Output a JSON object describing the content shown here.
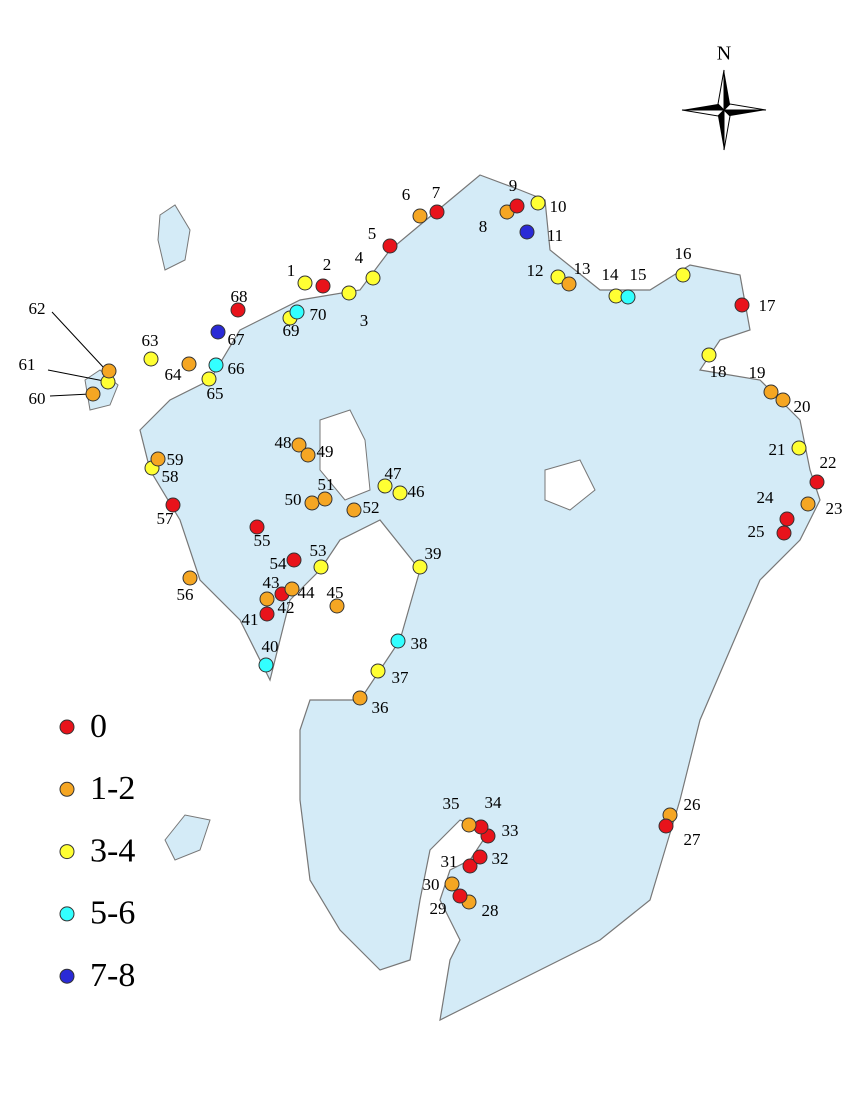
{
  "map": {
    "north_label": "N",
    "legend": [
      {
        "label": "0",
        "color": "#e8131b"
      },
      {
        "label": "1-2",
        "color": "#f5a623"
      },
      {
        "label": "3-4",
        "color": "#ffff33"
      },
      {
        "label": "5-6",
        "color": "#33ffff"
      },
      {
        "label": "7-8",
        "color": "#2a2ad6"
      }
    ],
    "sites": [
      {
        "label": "1",
        "category": "3-4"
      },
      {
        "label": "2",
        "category": "0"
      },
      {
        "label": "3",
        "category": "3-4"
      },
      {
        "label": "4",
        "category": "3-4"
      },
      {
        "label": "5",
        "category": "0"
      },
      {
        "label": "6",
        "category": "1-2"
      },
      {
        "label": "7",
        "category": "0"
      },
      {
        "label": "8",
        "category": "1-2"
      },
      {
        "label": "9",
        "category": "0"
      },
      {
        "label": "10",
        "category": "3-4"
      },
      {
        "label": "11",
        "category": "7-8"
      },
      {
        "label": "12",
        "category": "3-4"
      },
      {
        "label": "13",
        "category": "1-2"
      },
      {
        "label": "14",
        "category": "3-4"
      },
      {
        "label": "15",
        "category": "5-6"
      },
      {
        "label": "16",
        "category": "3-4"
      },
      {
        "label": "17",
        "category": "0"
      },
      {
        "label": "18",
        "category": "3-4"
      },
      {
        "label": "19",
        "category": "1-2"
      },
      {
        "label": "20",
        "category": "1-2"
      },
      {
        "label": "21",
        "category": "3-4"
      },
      {
        "label": "22",
        "category": "0"
      },
      {
        "label": "23",
        "category": "1-2"
      },
      {
        "label": "24",
        "category": "0"
      },
      {
        "label": "25",
        "category": "0"
      },
      {
        "label": "26",
        "category": "1-2"
      },
      {
        "label": "27",
        "category": "0"
      },
      {
        "label": "28",
        "category": "1-2"
      },
      {
        "label": "29",
        "category": "0"
      },
      {
        "label": "30",
        "category": "1-2"
      },
      {
        "label": "31",
        "category": "0"
      },
      {
        "label": "32",
        "category": "0"
      },
      {
        "label": "33",
        "category": "0"
      },
      {
        "label": "34",
        "category": "0"
      },
      {
        "label": "35",
        "category": "1-2"
      },
      {
        "label": "36",
        "category": "1-2"
      },
      {
        "label": "37",
        "category": "3-4"
      },
      {
        "label": "38",
        "category": "5-6"
      },
      {
        "label": "39",
        "category": "3-4"
      },
      {
        "label": "40",
        "category": "5-6"
      },
      {
        "label": "41",
        "category": "0"
      },
      {
        "label": "42",
        "category": "0"
      },
      {
        "label": "43",
        "category": "1-2"
      },
      {
        "label": "44",
        "category": "1-2"
      },
      {
        "label": "45",
        "category": "1-2"
      },
      {
        "label": "46",
        "category": "3-4"
      },
      {
        "label": "47",
        "category": "3-4"
      },
      {
        "label": "48",
        "category": "1-2"
      },
      {
        "label": "49",
        "category": "1-2"
      },
      {
        "label": "50",
        "category": "1-2"
      },
      {
        "label": "51",
        "category": "1-2"
      },
      {
        "label": "52",
        "category": "1-2"
      },
      {
        "label": "53",
        "category": "3-4"
      },
      {
        "label": "54",
        "category": "0"
      },
      {
        "label": "55",
        "category": "0"
      },
      {
        "label": "56",
        "category": "1-2"
      },
      {
        "label": "57",
        "category": "0"
      },
      {
        "label": "58",
        "category": "3-4"
      },
      {
        "label": "59",
        "category": "1-2"
      },
      {
        "label": "60",
        "category": "1-2"
      },
      {
        "label": "61",
        "category": "3-4"
      },
      {
        "label": "62",
        "category": "1-2"
      },
      {
        "label": "63",
        "category": "3-4"
      },
      {
        "label": "64",
        "category": "1-2"
      },
      {
        "label": "65",
        "category": "3-4"
      },
      {
        "label": "66",
        "category": "5-6"
      },
      {
        "label": "67",
        "category": "7-8"
      },
      {
        "label": "68",
        "category": "0"
      },
      {
        "label": "69",
        "category": "3-4"
      },
      {
        "label": "70",
        "category": "5-6"
      }
    ]
  }
}
